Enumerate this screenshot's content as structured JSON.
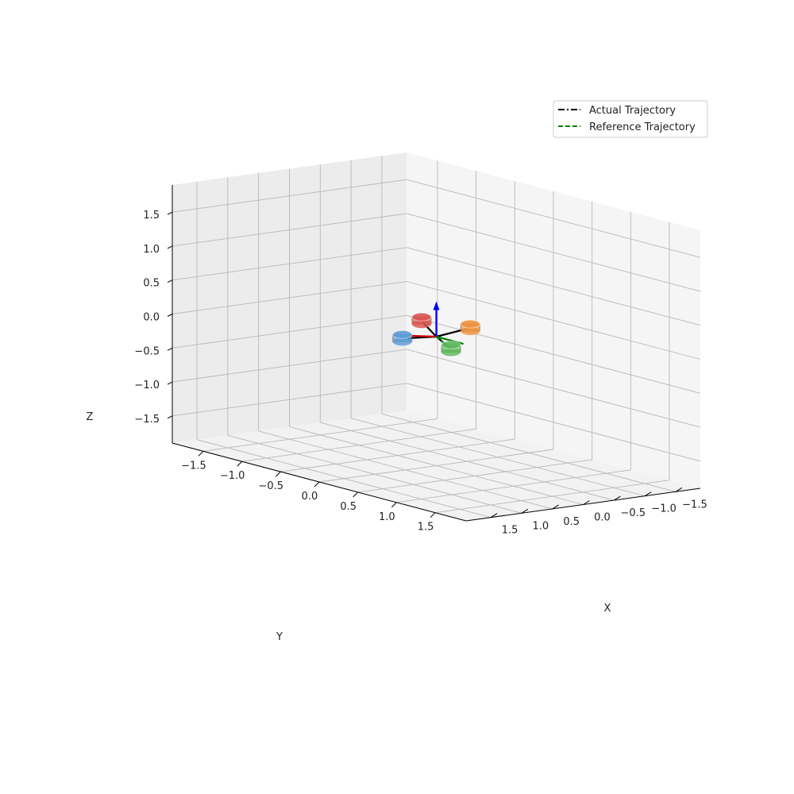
{
  "chart_data": {
    "type": "line",
    "projection": "3d",
    "title": "",
    "xlabel": "X",
    "ylabel": "Y",
    "zlabel": "Z",
    "xlim": [
      -1.9,
      1.9
    ],
    "ylim": [
      -1.9,
      1.9
    ],
    "zlim": [
      -1.9,
      1.9
    ],
    "xticks": [
      "−1.5",
      "−1.0",
      "−0.5",
      "0.0",
      "0.5",
      "1.0",
      "1.5"
    ],
    "yticks": [
      "−1.5",
      "−1.0",
      "−0.5",
      "0.0",
      "0.5",
      "1.0",
      "1.5"
    ],
    "zticks": [
      "−1.5",
      "−1.0",
      "−0.5",
      "0.0",
      "0.5",
      "1.0",
      "1.5"
    ],
    "grid": true,
    "legend_position": "top-right",
    "legend": [
      {
        "label": "Actual Trajectory",
        "color": "#000000",
        "style": "dashdot"
      },
      {
        "label": "Reference Trajectory",
        "color": "#008000",
        "style": "dashed"
      }
    ],
    "quadrotor": {
      "center": [
        0,
        0,
        0
      ],
      "arms": [
        {
          "rotor": "red",
          "end": [
            -0.2,
            -0.35,
            0.1
          ],
          "color": "#d9534f"
        },
        {
          "rotor": "orange",
          "end": [
            -0.3,
            0.2,
            0.15
          ],
          "color": "#f0913d"
        },
        {
          "rotor": "blue",
          "end": [
            0.3,
            -0.2,
            -0.05
          ],
          "color": "#5b9bd5"
        },
        {
          "rotor": "green",
          "end": [
            0.2,
            0.35,
            -0.05
          ],
          "color": "#5cb85c"
        }
      ],
      "body_axes": [
        {
          "name": "body-x-axis",
          "color": "#d40000",
          "end": [
            0.25,
            -0.15,
            0.0
          ]
        },
        {
          "name": "body-y-axis",
          "color": "#008000",
          "end": [
            0.0,
            0.35,
            0.0
          ]
        },
        {
          "name": "body-z-axis",
          "color": "#0000ff",
          "end": [
            0.0,
            0.0,
            0.45
          ]
        }
      ]
    },
    "series": [
      {
        "name": "Actual Trajectory",
        "points": [
          [
            0,
            0,
            0
          ]
        ]
      },
      {
        "name": "Reference Trajectory",
        "points": [
          [
            0,
            0,
            0
          ]
        ]
      }
    ]
  }
}
